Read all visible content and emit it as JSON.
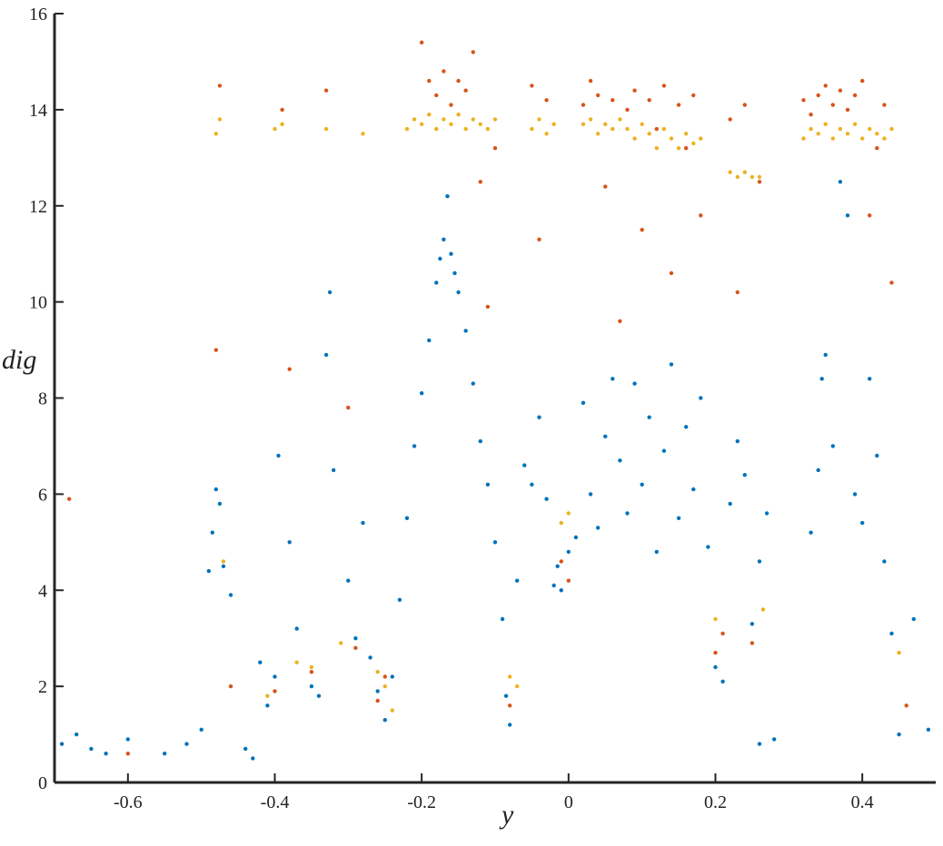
{
  "chart_data": {
    "type": "scatter",
    "title": "",
    "xlabel": "y",
    "ylabel": "dig",
    "xlim": [
      -0.7,
      0.5
    ],
    "ylim": [
      0,
      16
    ],
    "xticks": [
      -0.6,
      -0.4,
      -0.2,
      0,
      0.2,
      0.4
    ],
    "xtick_labels": [
      "-0.6",
      "-0.4",
      "-0.2",
      "0",
      "0.2",
      "0.4"
    ],
    "yticks": [
      0,
      2,
      4,
      6,
      8,
      10,
      12,
      14,
      16
    ],
    "ytick_labels": [
      "0",
      "2",
      "4",
      "6",
      "8",
      "10",
      "12",
      "14",
      "16"
    ],
    "grid": false,
    "legend": "none",
    "colors": [
      "#0072BD",
      "#D95319",
      "#EDB120"
    ],
    "series": [
      {
        "color": "#0072BD",
        "points": [
          [
            -0.69,
            0.8
          ],
          [
            -0.67,
            1.0
          ],
          [
            -0.65,
            0.7
          ],
          [
            -0.63,
            0.6
          ],
          [
            -0.6,
            0.9
          ],
          [
            -0.55,
            0.6
          ],
          [
            -0.52,
            0.8
          ],
          [
            -0.5,
            1.1
          ],
          [
            -0.49,
            4.4
          ],
          [
            -0.485,
            5.2
          ],
          [
            -0.48,
            6.1
          ],
          [
            -0.475,
            5.8
          ],
          [
            -0.47,
            4.5
          ],
          [
            -0.46,
            3.9
          ],
          [
            -0.44,
            0.7
          ],
          [
            -0.43,
            0.5
          ],
          [
            -0.42,
            2.5
          ],
          [
            -0.41,
            1.6
          ],
          [
            -0.4,
            2.2
          ],
          [
            -0.395,
            6.8
          ],
          [
            -0.38,
            5.0
          ],
          [
            -0.37,
            3.2
          ],
          [
            -0.35,
            2.0
          ],
          [
            -0.34,
            1.8
          ],
          [
            -0.33,
            8.9
          ],
          [
            -0.325,
            10.2
          ],
          [
            -0.32,
            6.5
          ],
          [
            -0.3,
            4.2
          ],
          [
            -0.29,
            3.0
          ],
          [
            -0.28,
            5.4
          ],
          [
            -0.27,
            2.6
          ],
          [
            -0.26,
            1.9
          ],
          [
            -0.25,
            1.3
          ],
          [
            -0.24,
            2.2
          ],
          [
            -0.23,
            3.8
          ],
          [
            -0.22,
            5.5
          ],
          [
            -0.21,
            7.0
          ],
          [
            -0.2,
            8.1
          ],
          [
            -0.19,
            9.2
          ],
          [
            -0.18,
            10.4
          ],
          [
            -0.175,
            10.9
          ],
          [
            -0.17,
            11.3
          ],
          [
            -0.165,
            12.2
          ],
          [
            -0.16,
            11.0
          ],
          [
            -0.155,
            10.6
          ],
          [
            -0.15,
            10.2
          ],
          [
            -0.14,
            9.4
          ],
          [
            -0.13,
            8.3
          ],
          [
            -0.12,
            7.1
          ],
          [
            -0.11,
            6.2
          ],
          [
            -0.1,
            5.0
          ],
          [
            -0.09,
            3.4
          ],
          [
            -0.085,
            1.8
          ],
          [
            -0.08,
            1.2
          ],
          [
            -0.07,
            4.2
          ],
          [
            -0.06,
            6.6
          ],
          [
            -0.05,
            6.2
          ],
          [
            -0.04,
            7.6
          ],
          [
            -0.03,
            5.9
          ],
          [
            -0.02,
            4.1
          ],
          [
            -0.015,
            4.5
          ],
          [
            -0.01,
            4.0
          ],
          [
            0.0,
            4.8
          ],
          [
            0.01,
            5.1
          ],
          [
            0.02,
            7.9
          ],
          [
            0.03,
            6.0
          ],
          [
            0.04,
            5.3
          ],
          [
            0.05,
            7.2
          ],
          [
            0.06,
            8.4
          ],
          [
            0.07,
            6.7
          ],
          [
            0.08,
            5.6
          ],
          [
            0.09,
            8.3
          ],
          [
            0.1,
            6.2
          ],
          [
            0.11,
            7.6
          ],
          [
            0.12,
            4.8
          ],
          [
            0.13,
            6.9
          ],
          [
            0.14,
            8.7
          ],
          [
            0.15,
            5.5
          ],
          [
            0.16,
            7.4
          ],
          [
            0.17,
            6.1
          ],
          [
            0.18,
            8.0
          ],
          [
            0.19,
            4.9
          ],
          [
            0.2,
            2.4
          ],
          [
            0.21,
            2.1
          ],
          [
            0.22,
            5.8
          ],
          [
            0.23,
            7.1
          ],
          [
            0.24,
            6.4
          ],
          [
            0.25,
            3.3
          ],
          [
            0.26,
            4.6
          ],
          [
            0.27,
            5.6
          ],
          [
            0.33,
            5.2
          ],
          [
            0.34,
            6.5
          ],
          [
            0.345,
            8.4
          ],
          [
            0.35,
            8.9
          ],
          [
            0.36,
            7.0
          ],
          [
            0.37,
            12.5
          ],
          [
            0.38,
            11.8
          ],
          [
            0.39,
            6.0
          ],
          [
            0.4,
            5.4
          ],
          [
            0.41,
            8.4
          ],
          [
            0.42,
            6.8
          ],
          [
            0.43,
            4.6
          ],
          [
            0.44,
            3.1
          ],
          [
            0.45,
            1.0
          ],
          [
            0.47,
            3.4
          ],
          [
            0.49,
            1.1
          ],
          [
            0.26,
            0.8
          ],
          [
            0.28,
            0.9
          ]
        ]
      },
      {
        "color": "#D95319",
        "points": [
          [
            -0.68,
            5.9
          ],
          [
            -0.6,
            0.6
          ],
          [
            -0.48,
            9.0
          ],
          [
            -0.475,
            14.5
          ],
          [
            -0.46,
            2.0
          ],
          [
            -0.4,
            1.9
          ],
          [
            -0.39,
            14.0
          ],
          [
            -0.38,
            8.6
          ],
          [
            -0.35,
            2.3
          ],
          [
            -0.33,
            14.4
          ],
          [
            -0.3,
            7.8
          ],
          [
            -0.29,
            2.8
          ],
          [
            -0.26,
            1.7
          ],
          [
            -0.25,
            2.2
          ],
          [
            -0.2,
            15.4
          ],
          [
            -0.19,
            14.6
          ],
          [
            -0.18,
            14.3
          ],
          [
            -0.17,
            14.8
          ],
          [
            -0.16,
            14.1
          ],
          [
            -0.15,
            14.6
          ],
          [
            -0.14,
            14.4
          ],
          [
            -0.13,
            15.2
          ],
          [
            -0.12,
            12.5
          ],
          [
            -0.11,
            9.9
          ],
          [
            -0.1,
            13.2
          ],
          [
            -0.08,
            1.6
          ],
          [
            -0.05,
            14.5
          ],
          [
            -0.04,
            11.3
          ],
          [
            -0.03,
            14.2
          ],
          [
            -0.01,
            4.6
          ],
          [
            0.0,
            4.2
          ],
          [
            0.02,
            14.1
          ],
          [
            0.03,
            14.6
          ],
          [
            0.04,
            14.3
          ],
          [
            0.05,
            12.4
          ],
          [
            0.06,
            14.2
          ],
          [
            0.07,
            9.6
          ],
          [
            0.08,
            14.0
          ],
          [
            0.09,
            14.4
          ],
          [
            0.1,
            11.5
          ],
          [
            0.11,
            14.2
          ],
          [
            0.12,
            13.6
          ],
          [
            0.13,
            14.5
          ],
          [
            0.14,
            10.6
          ],
          [
            0.15,
            14.1
          ],
          [
            0.16,
            13.2
          ],
          [
            0.17,
            14.3
          ],
          [
            0.18,
            11.8
          ],
          [
            0.2,
            2.7
          ],
          [
            0.21,
            3.1
          ],
          [
            0.22,
            13.8
          ],
          [
            0.23,
            10.2
          ],
          [
            0.24,
            14.1
          ],
          [
            0.25,
            2.9
          ],
          [
            0.26,
            12.5
          ],
          [
            0.32,
            14.2
          ],
          [
            0.33,
            13.9
          ],
          [
            0.34,
            14.3
          ],
          [
            0.35,
            14.5
          ],
          [
            0.36,
            14.1
          ],
          [
            0.37,
            14.4
          ],
          [
            0.38,
            14.0
          ],
          [
            0.39,
            14.3
          ],
          [
            0.4,
            14.6
          ],
          [
            0.41,
            11.8
          ],
          [
            0.42,
            13.2
          ],
          [
            0.43,
            14.1
          ],
          [
            0.44,
            10.4
          ],
          [
            0.46,
            1.6
          ]
        ]
      },
      {
        "color": "#EDB120",
        "points": [
          [
            -0.48,
            13.5
          ],
          [
            -0.475,
            13.8
          ],
          [
            -0.47,
            4.6
          ],
          [
            -0.41,
            1.8
          ],
          [
            -0.4,
            13.6
          ],
          [
            -0.39,
            13.7
          ],
          [
            -0.37,
            2.5
          ],
          [
            -0.35,
            2.4
          ],
          [
            -0.33,
            13.6
          ],
          [
            -0.31,
            2.9
          ],
          [
            -0.28,
            13.5
          ],
          [
            -0.26,
            2.3
          ],
          [
            -0.25,
            2.0
          ],
          [
            -0.24,
            1.5
          ],
          [
            -0.22,
            13.6
          ],
          [
            -0.21,
            13.8
          ],
          [
            -0.2,
            13.7
          ],
          [
            -0.19,
            13.9
          ],
          [
            -0.18,
            13.6
          ],
          [
            -0.17,
            13.8
          ],
          [
            -0.16,
            13.7
          ],
          [
            -0.15,
            13.9
          ],
          [
            -0.14,
            13.6
          ],
          [
            -0.13,
            13.8
          ],
          [
            -0.12,
            13.7
          ],
          [
            -0.11,
            13.6
          ],
          [
            -0.1,
            13.8
          ],
          [
            -0.08,
            2.2
          ],
          [
            -0.07,
            2.0
          ],
          [
            -0.05,
            13.6
          ],
          [
            -0.04,
            13.8
          ],
          [
            -0.03,
            13.5
          ],
          [
            -0.02,
            13.7
          ],
          [
            -0.01,
            5.4
          ],
          [
            0.0,
            5.6
          ],
          [
            0.02,
            13.7
          ],
          [
            0.03,
            13.8
          ],
          [
            0.04,
            13.5
          ],
          [
            0.05,
            13.7
          ],
          [
            0.06,
            13.6
          ],
          [
            0.07,
            13.8
          ],
          [
            0.08,
            13.6
          ],
          [
            0.09,
            13.4
          ],
          [
            0.1,
            13.7
          ],
          [
            0.11,
            13.5
          ],
          [
            0.12,
            13.2
          ],
          [
            0.13,
            13.6
          ],
          [
            0.14,
            13.4
          ],
          [
            0.15,
            13.2
          ],
          [
            0.16,
            13.5
          ],
          [
            0.17,
            13.3
          ],
          [
            0.18,
            13.4
          ],
          [
            0.2,
            3.4
          ],
          [
            0.22,
            12.7
          ],
          [
            0.23,
            12.6
          ],
          [
            0.24,
            12.7
          ],
          [
            0.25,
            12.6
          ],
          [
            0.26,
            12.6
          ],
          [
            0.265,
            3.6
          ],
          [
            0.32,
            13.4
          ],
          [
            0.33,
            13.6
          ],
          [
            0.34,
            13.5
          ],
          [
            0.35,
            13.7
          ],
          [
            0.36,
            13.4
          ],
          [
            0.37,
            13.6
          ],
          [
            0.38,
            13.5
          ],
          [
            0.39,
            13.7
          ],
          [
            0.4,
            13.4
          ],
          [
            0.41,
            13.6
          ],
          [
            0.42,
            13.5
          ],
          [
            0.43,
            13.4
          ],
          [
            0.44,
            13.6
          ],
          [
            0.45,
            2.7
          ]
        ]
      }
    ]
  }
}
